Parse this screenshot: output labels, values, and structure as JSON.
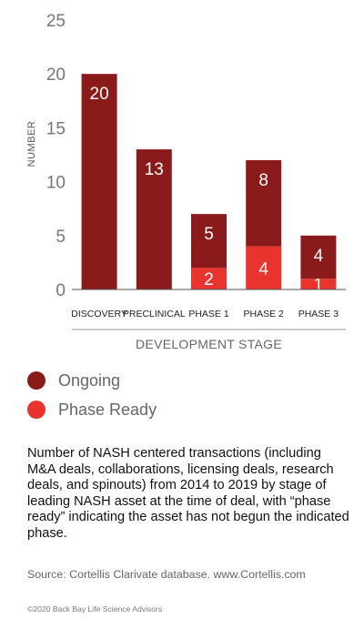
{
  "chart_data": {
    "type": "bar",
    "stacked": true,
    "categories": [
      "DISCOVERY",
      "PRECLINICAL",
      "PHASE 1",
      "PHASE 2",
      "PHASE 3"
    ],
    "series": [
      {
        "name": "Phase Ready",
        "values": [
          0,
          0,
          2,
          4,
          1
        ],
        "color": "#e8342c"
      },
      {
        "name": "Ongoing",
        "values": [
          20,
          13,
          5,
          8,
          4
        ],
        "color": "#8b1a1a"
      }
    ],
    "ylim": [
      0,
      25
    ],
    "yticks": [
      0,
      5,
      10,
      15,
      20,
      25
    ],
    "ylabel": "NUMBER",
    "xlabel": "DEVELOPMENT STAGE",
    "grid": false,
    "legend_position": "bottom-left"
  },
  "legend": [
    {
      "label": "Ongoing",
      "color": "#8b1a1a"
    },
    {
      "label": "Phase Ready",
      "color": "#e8342c"
    }
  ],
  "caption": "Number of NASH centered transactions (including M&A deals, collaborations, licensing deals, research deals, and spinouts) from 2014 to 2019 by stage of leading NASH asset at the time of deal, with “phase ready” indicating the asset has not begun the indicated phase.",
  "source": "Source: Cortellis Clarivate database. www.Cortellis.com",
  "copyright": "©2020 Back Bay Life Science Advisors"
}
